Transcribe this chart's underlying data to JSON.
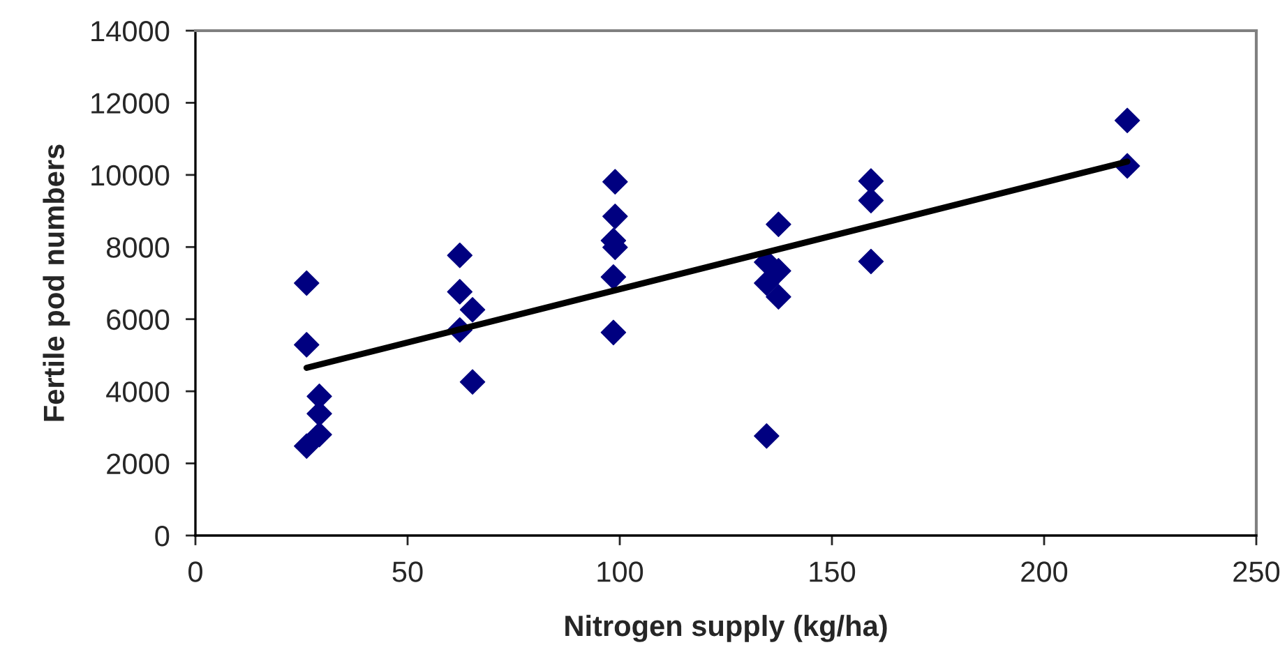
{
  "chart_data": {
    "type": "scatter",
    "xlabel": "Nitrogen supply (kg/ha)",
    "ylabel": "Fertile pod numbers",
    "xlim": [
      0,
      250
    ],
    "xticks": [
      0,
      50,
      100,
      150,
      200,
      250
    ],
    "ylim": [
      0,
      14000
    ],
    "yticks": [
      0,
      2000,
      4000,
      6000,
      8000,
      10000,
      12000,
      14000
    ],
    "grid": false,
    "legend": false,
    "marker": "diamond",
    "series": [
      {
        "color": "#000080",
        "x": [
          26.2,
          26.2,
          26.2,
          29.2,
          29.2,
          29.2,
          62.3,
          62.3,
          62.3,
          65.3,
          65.3,
          98.9,
          98.9,
          98.5,
          98.9,
          98.5,
          98.5,
          137.4,
          134.6,
          137.4,
          134.6,
          137.4,
          134.6,
          159.2,
          159.2,
          159.2,
          219.6,
          219.6
        ],
        "values": [
          7000,
          5290,
          2480,
          3860,
          3380,
          2800,
          7770,
          6760,
          5700,
          6260,
          4260,
          9810,
          8850,
          8180,
          7990,
          7170,
          5630,
          8630,
          7580,
          7340,
          7000,
          6620,
          2760,
          9830,
          9290,
          7600,
          11510,
          10250
        ]
      },
      {
        "type": "line",
        "color": "#000000",
        "x": [
          26.2,
          219.6
        ],
        "values": [
          4650,
          10370
        ],
        "marker": "none",
        "line_style": "solid"
      }
    ]
  }
}
